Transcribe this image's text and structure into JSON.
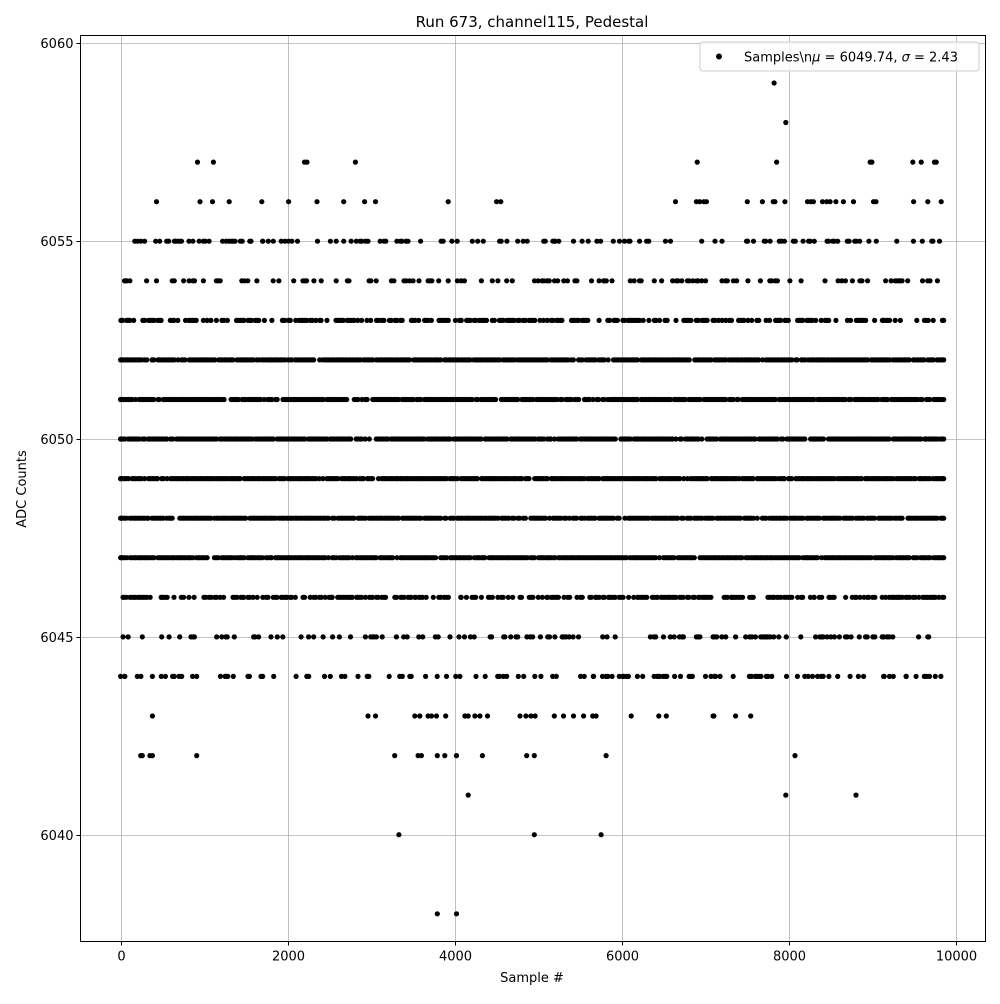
{
  "chart_data": {
    "type": "scatter",
    "title": "Run 673, channel115, Pedestal",
    "xlabel": "Sample #",
    "ylabel": "ADC Counts",
    "xlim": [
      -480,
      10350
    ],
    "ylim": [
      6037.3,
      6060.2
    ],
    "xticks": [
      0,
      2000,
      4000,
      6000,
      8000,
      10000
    ],
    "xtick_labels": [
      "0",
      "2000",
      "4000",
      "6000",
      "8000",
      "10000"
    ],
    "yticks": [
      6040,
      6045,
      6050,
      6055,
      6060
    ],
    "ytick_labels": [
      "6040",
      "6045",
      "6050",
      "6055",
      "6060"
    ],
    "grid": true,
    "legend": {
      "position": "top-right",
      "label": "Samples\\n$\\mu$ = 6049.74, $\\sigma$ = 2.43",
      "label_display": [
        "Samples\\n",
        "μ",
        " = 6049.74, ",
        "σ",
        " = 2.43"
      ]
    },
    "marker_color": "#000000",
    "series": [
      {
        "name": "Samples\\n$\\mu$ = 6049.74, $\\sigma$ = 2.43",
        "x_range": [
          0,
          9840
        ],
        "sampling_note_values": {
          "dense_levels": [
            6047,
            6048,
            6049,
            6050,
            6051,
            6052
          ],
          "medium_levels": [
            6046,
            6053
          ],
          "sparse_levels": [
            6044,
            6045,
            6054,
            6055
          ]
        },
        "points": [
          [
            920,
            6057
          ],
          [
            1110,
            6057
          ],
          [
            2200,
            6057
          ],
          [
            2230,
            6057
          ],
          [
            2810,
            6057
          ],
          [
            6900,
            6057
          ],
          [
            7850,
            6057
          ],
          [
            8970,
            6057
          ],
          [
            8990,
            6057
          ],
          [
            9480,
            6057
          ],
          [
            9580,
            6057
          ],
          [
            9740,
            6057
          ],
          [
            9760,
            6057
          ],
          [
            430,
            6056
          ],
          [
            950,
            6056
          ],
          [
            1100,
            6056
          ],
          [
            1300,
            6056
          ],
          [
            1690,
            6056
          ],
          [
            2010,
            6056
          ],
          [
            2350,
            6056
          ],
          [
            2670,
            6056
          ],
          [
            2920,
            6056
          ],
          [
            3050,
            6056
          ],
          [
            3920,
            6056
          ],
          [
            4500,
            6056
          ],
          [
            4550,
            6056
          ],
          [
            6640,
            6056
          ],
          [
            6890,
            6056
          ],
          [
            6930,
            6056
          ],
          [
            6980,
            6056
          ],
          [
            7010,
            6056
          ],
          [
            7500,
            6056
          ],
          [
            7680,
            6056
          ],
          [
            7810,
            6056
          ],
          [
            7830,
            6056
          ],
          [
            7950,
            6056
          ],
          [
            8220,
            6056
          ],
          [
            8260,
            6056
          ],
          [
            8290,
            6056
          ],
          [
            8400,
            6056
          ],
          [
            8450,
            6056
          ],
          [
            8490,
            6056
          ],
          [
            8560,
            6056
          ],
          [
            8650,
            6056
          ],
          [
            8770,
            6056
          ],
          [
            9010,
            6056
          ],
          [
            9040,
            6056
          ],
          [
            9490,
            6056
          ],
          [
            9660,
            6056
          ],
          [
            9820,
            6056
          ],
          [
            7820,
            6059
          ],
          [
            7960,
            6058
          ],
          [
            3330,
            6040
          ],
          [
            4950,
            6040
          ],
          [
            5750,
            6040
          ],
          [
            3790,
            6038
          ],
          [
            4020,
            6038
          ],
          [
            4160,
            6041
          ],
          [
            7960,
            6041
          ],
          [
            8800,
            6041
          ],
          [
            240,
            6042
          ],
          [
            260,
            6042
          ],
          [
            350,
            6042
          ],
          [
            380,
            6042
          ],
          [
            910,
            6042
          ],
          [
            3280,
            6042
          ],
          [
            3560,
            6042
          ],
          [
            3600,
            6042
          ],
          [
            3790,
            6042
          ],
          [
            3880,
            6042
          ],
          [
            4020,
            6042
          ],
          [
            4330,
            6042
          ],
          [
            4860,
            6042
          ],
          [
            4950,
            6042
          ],
          [
            5810,
            6042
          ],
          [
            8070,
            6042
          ],
          [
            380,
            6043
          ],
          [
            2960,
            6043
          ],
          [
            3050,
            6043
          ],
          [
            3520,
            6043
          ],
          [
            3580,
            6043
          ],
          [
            3680,
            6043
          ],
          [
            3720,
            6043
          ],
          [
            3780,
            6043
          ],
          [
            3890,
            6043
          ],
          [
            4120,
            6043
          ],
          [
            4160,
            6043
          ],
          [
            4240,
            6043
          ],
          [
            4300,
            6043
          ],
          [
            4390,
            6043
          ],
          [
            4780,
            6043
          ],
          [
            4850,
            6043
          ],
          [
            4910,
            6043
          ],
          [
            4960,
            6043
          ],
          [
            5190,
            6043
          ],
          [
            5300,
            6043
          ],
          [
            5420,
            6043
          ],
          [
            5540,
            6043
          ],
          [
            5650,
            6043
          ],
          [
            5690,
            6043
          ],
          [
            6110,
            6043
          ],
          [
            6440,
            6043
          ],
          [
            6530,
            6043
          ],
          [
            7090,
            6043
          ],
          [
            7100,
            6043
          ],
          [
            7360,
            6043
          ],
          [
            7540,
            6043
          ],
          [
            5200,
            6055
          ],
          [
            5700,
            6055
          ],
          [
            6030,
            6055
          ],
          [
            6080,
            6055
          ],
          [
            6520,
            6055
          ],
          [
            6580,
            6055
          ],
          [
            4340,
            6055
          ],
          [
            3860,
            6055
          ],
          [
            3590,
            6055
          ],
          [
            2930,
            6055
          ],
          [
            2960,
            6055
          ],
          [
            170,
            6055
          ],
          [
            660,
            6055
          ],
          [
            940,
            6055
          ],
          [
            1220,
            6055
          ],
          [
            1560,
            6055
          ],
          [
            1700,
            6055
          ],
          [
            2050,
            6055
          ],
          [
            2580,
            6055
          ],
          [
            7490,
            6055
          ],
          [
            7720,
            6055
          ],
          [
            8050,
            6055
          ],
          [
            9720,
            6055
          ],
          [
            9800,
            6055
          ],
          [
            60,
            6054
          ],
          [
            430,
            6054
          ],
          [
            820,
            6054
          ],
          [
            1450,
            6054
          ],
          [
            2400,
            6054
          ],
          [
            3270,
            6054
          ],
          [
            3460,
            6054
          ],
          [
            3920,
            6054
          ],
          [
            4620,
            6054
          ],
          [
            5230,
            6054
          ],
          [
            5460,
            6054
          ],
          [
            5780,
            6054
          ],
          [
            6230,
            6054
          ],
          [
            6650,
            6054
          ],
          [
            7000,
            6054
          ],
          [
            7240,
            6054
          ],
          [
            7860,
            6054
          ],
          [
            9220,
            6054
          ],
          [
            50,
            6044
          ],
          [
            200,
            6044
          ],
          [
            380,
            6044
          ],
          [
            700,
            6044
          ],
          [
            910,
            6044
          ],
          [
            1250,
            6044
          ],
          [
            1700,
            6044
          ],
          [
            2100,
            6044
          ],
          [
            2440,
            6044
          ],
          [
            2970,
            6044
          ],
          [
            3340,
            6044
          ],
          [
            3650,
            6044
          ],
          [
            4060,
            6044
          ],
          [
            4620,
            6044
          ],
          [
            5030,
            6044
          ],
          [
            5660,
            6044
          ],
          [
            6020,
            6044
          ],
          [
            6420,
            6044
          ],
          [
            6700,
            6044
          ],
          [
            7120,
            6044
          ],
          [
            7550,
            6044
          ],
          [
            8340,
            6044
          ],
          [
            8730,
            6044
          ],
          [
            9130,
            6044
          ],
          [
            9400,
            6044
          ],
          [
            9520,
            6044
          ],
          [
            9680,
            6044
          ],
          [
            30,
            6045
          ],
          [
            260,
            6045
          ],
          [
            580,
            6045
          ],
          [
            870,
            6045
          ],
          [
            1150,
            6045
          ],
          [
            1360,
            6045
          ],
          [
            1800,
            6045
          ],
          [
            2160,
            6045
          ],
          [
            3030,
            6045
          ],
          [
            3430,
            6045
          ],
          [
            3800,
            6045
          ],
          [
            4050,
            6045
          ],
          [
            4440,
            6045
          ],
          [
            4900,
            6045
          ],
          [
            5480,
            6045
          ],
          [
            5820,
            6045
          ],
          [
            6340,
            6045
          ],
          [
            6720,
            6045
          ],
          [
            7090,
            6045
          ],
          [
            7360,
            6045
          ],
          [
            7660,
            6045
          ],
          [
            8140,
            6045
          ],
          [
            8500,
            6045
          ],
          [
            8840,
            6045
          ],
          [
            9170,
            6045
          ],
          [
            9670,
            6045
          ],
          [
            40,
            6046
          ],
          [
            500,
            6046
          ],
          [
            880,
            6046
          ],
          [
            1460,
            6046
          ],
          [
            1990,
            6046
          ],
          [
            2530,
            6046
          ],
          [
            3000,
            6046
          ],
          [
            3530,
            6046
          ],
          [
            4070,
            6046
          ],
          [
            4640,
            6046
          ],
          [
            5100,
            6046
          ],
          [
            5690,
            6046
          ],
          [
            6200,
            6046
          ],
          [
            6780,
            6046
          ],
          [
            7310,
            6046
          ],
          [
            7820,
            6046
          ],
          [
            8300,
            6046
          ],
          [
            8790,
            6046
          ],
          [
            9310,
            6046
          ],
          [
            9730,
            6046
          ],
          [
            9850,
            6046
          ],
          [
            0,
            6052
          ],
          [
            0,
            6051
          ],
          [
            0,
            6050
          ],
          [
            0,
            6049
          ],
          [
            0,
            6048
          ],
          [
            0,
            6047
          ],
          [
            9850,
            6052
          ],
          [
            9850,
            6051
          ],
          [
            9850,
            6050
          ],
          [
            9850,
            6049
          ],
          [
            9850,
            6048
          ],
          [
            9850,
            6047
          ],
          [
            9850,
            6053
          ]
        ]
      }
    ]
  }
}
